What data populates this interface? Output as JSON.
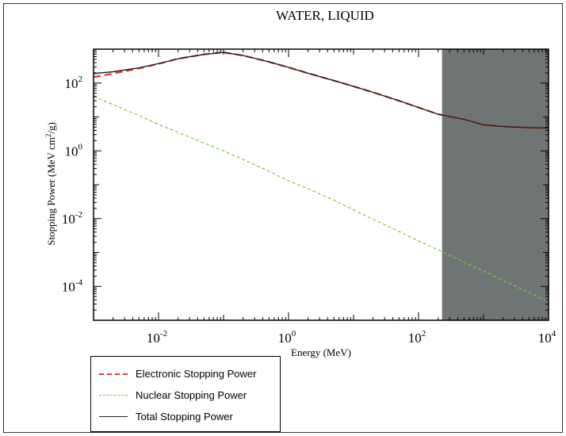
{
  "chart_data": {
    "type": "line",
    "title": "WATER, LIQUID",
    "xlabel": "Energy (MeV)",
    "ylabel": "Stopping Power (MeV cm2/g)",
    "xscale": "log",
    "yscale": "log",
    "xlim": [
      0.001,
      10000
    ],
    "ylim": [
      1e-05,
      1000
    ],
    "x_ticks": [
      {
        "value": 0.01,
        "base": "10",
        "exp": "-2"
      },
      {
        "value": 1,
        "base": "10",
        "exp": "0"
      },
      {
        "value": 100,
        "base": "10",
        "exp": "2"
      },
      {
        "value": 10000,
        "base": "10",
        "exp": "4"
      }
    ],
    "y_ticks": [
      {
        "value": 0.0001,
        "base": "10",
        "exp": "-4"
      },
      {
        "value": 0.01,
        "base": "10",
        "exp": "-2"
      },
      {
        "value": 1,
        "base": "10",
        "exp": "0"
      },
      {
        "value": 100,
        "base": "10",
        "exp": "2"
      }
    ],
    "shaded_region": {
      "x_start": 230,
      "x_end": 10000,
      "color": "#6f7574"
    },
    "legend_placement": "below-left",
    "series": [
      {
        "name": "Electronic Stopping Power",
        "color": "#e03a2a",
        "style": "dashed",
        "x": [
          0.001,
          0.002,
          0.005,
          0.01,
          0.02,
          0.05,
          0.1,
          0.2,
          0.5,
          1,
          2,
          5,
          10,
          20,
          50,
          100,
          200,
          500,
          1000,
          2000,
          5000,
          10000
        ],
        "y": [
          150,
          190,
          270,
          370,
          520,
          700,
          800,
          650,
          420,
          290,
          195,
          118,
          80,
          53,
          30,
          19,
          12,
          8.5,
          5.8,
          5.2,
          4.8,
          4.7
        ]
      },
      {
        "name": "Nuclear Stopping Power",
        "color": "#7ec83a",
        "style": "dashed",
        "x": [
          0.001,
          0.002,
          0.005,
          0.01,
          0.02,
          0.05,
          0.1,
          0.2,
          0.5,
          1,
          2,
          5,
          10,
          20,
          50,
          100,
          200,
          500,
          1000,
          2000,
          5000,
          10000
        ],
        "y": [
          40,
          23,
          11,
          6.0,
          3.5,
          1.7,
          1.0,
          0.55,
          0.25,
          0.13,
          0.075,
          0.035,
          0.018,
          0.0095,
          0.0042,
          0.0022,
          0.0012,
          0.00052,
          0.00028,
          0.00015,
          6.6e-05,
          3.5e-05
        ]
      },
      {
        "name": "Total Stopping Power",
        "color": "#222222",
        "style": "solid",
        "x": [
          0.001,
          0.002,
          0.005,
          0.01,
          0.02,
          0.05,
          0.1,
          0.2,
          0.5,
          1,
          2,
          5,
          10,
          20,
          50,
          100,
          200,
          500,
          1000,
          2000,
          5000,
          10000
        ],
        "y": [
          190,
          215,
          280,
          376,
          523,
          702,
          801,
          650,
          420,
          290,
          195,
          118,
          80,
          53,
          30,
          19,
          12,
          8.5,
          5.8,
          5.2,
          4.8,
          4.7
        ]
      }
    ]
  }
}
